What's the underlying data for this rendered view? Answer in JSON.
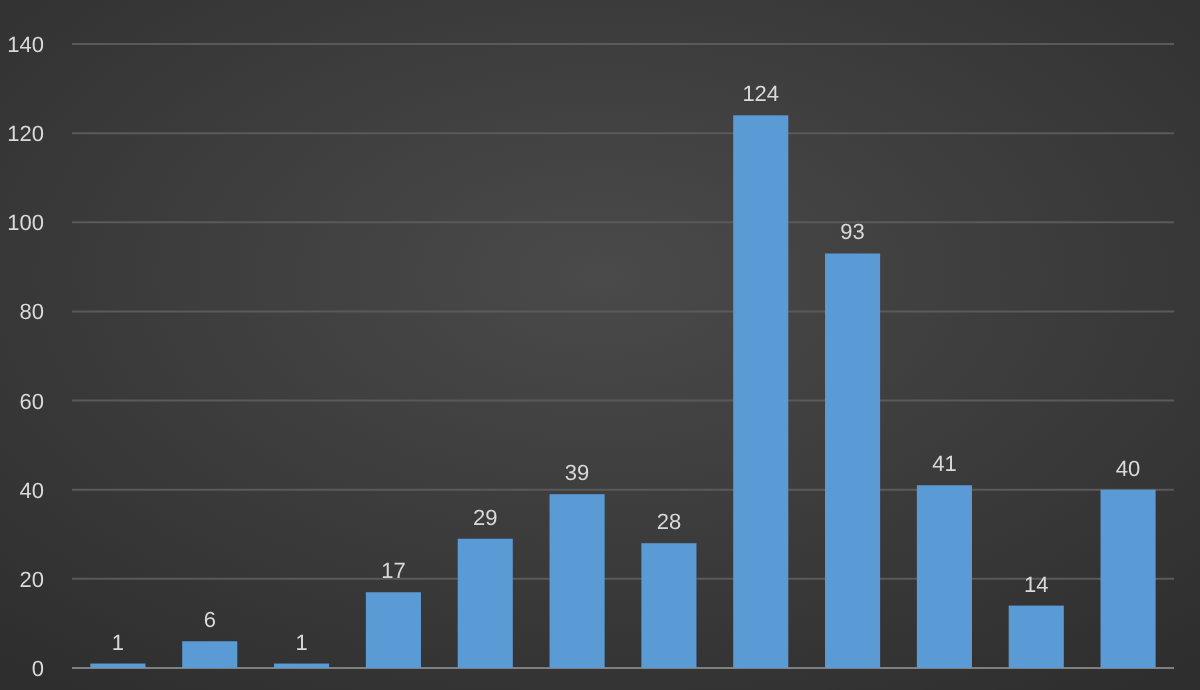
{
  "chart_data": {
    "type": "bar",
    "categories": [
      null,
      null,
      null,
      null,
      null,
      null,
      null,
      null,
      null,
      null,
      null,
      null
    ],
    "values": [
      1,
      6,
      1,
      17,
      29,
      39,
      28,
      124,
      93,
      41,
      14,
      40
    ],
    "color": "#5b9bd5",
    "ylim": [
      0,
      140
    ],
    "yticks": [
      0,
      20,
      40,
      60,
      80,
      100,
      120,
      140
    ],
    "grid": "y",
    "data_labels": true
  }
}
